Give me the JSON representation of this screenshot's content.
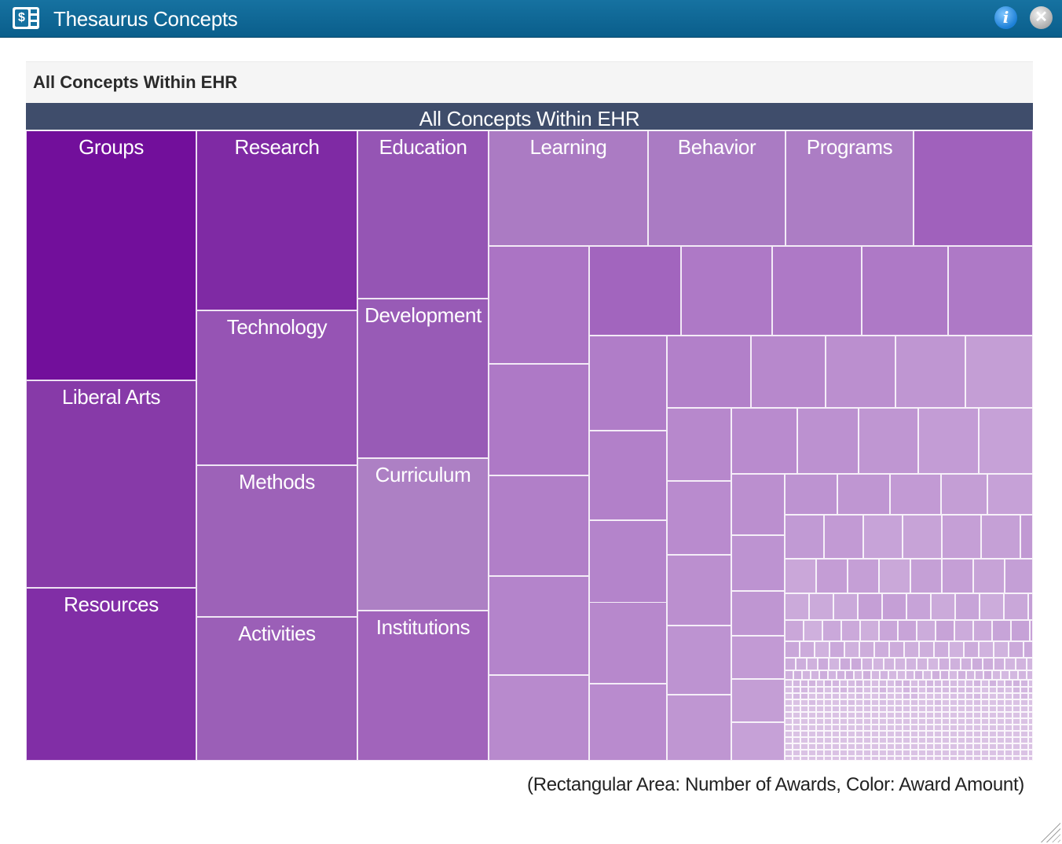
{
  "window": {
    "title": "Thesaurus Concepts",
    "app_icon": "dollar-document-icon",
    "info_glyph": "i",
    "close_glyph": "✕"
  },
  "panel": {
    "title": "All Concepts Within EHR"
  },
  "chart_data": {
    "type": "treemap",
    "title": "All Concepts Within EHR",
    "caption": "(Rectangular Area: Number of Awards, Color: Award Amount)",
    "color_scale": {
      "high": "#6e0f9a",
      "low": "#dcc6e6"
    },
    "labeled_nodes": [
      {
        "label": "Groups",
        "color": "#720f9b"
      },
      {
        "label": "Liberal Arts",
        "color": "#873aa8"
      },
      {
        "label": "Resources",
        "color": "#812ea6"
      },
      {
        "label": "Research",
        "color": "#7f2aa4"
      },
      {
        "label": "Technology",
        "color": "#9654b4"
      },
      {
        "label": "Methods",
        "color": "#9d62b8"
      },
      {
        "label": "Activities",
        "color": "#9b5fb7"
      },
      {
        "label": "Education",
        "color": "#9555b4"
      },
      {
        "label": "Development",
        "color": "#985bb6"
      },
      {
        "label": "Curriculum",
        "color": "#ad80c4"
      },
      {
        "label": "Institutions",
        "color": "#a164bb"
      },
      {
        "label": "Learning",
        "color": "#ab7bc3"
      },
      {
        "label": "Behavior",
        "color": "#aa7bc3"
      },
      {
        "label": "Programs",
        "color": "#ac7dc4"
      }
    ]
  }
}
